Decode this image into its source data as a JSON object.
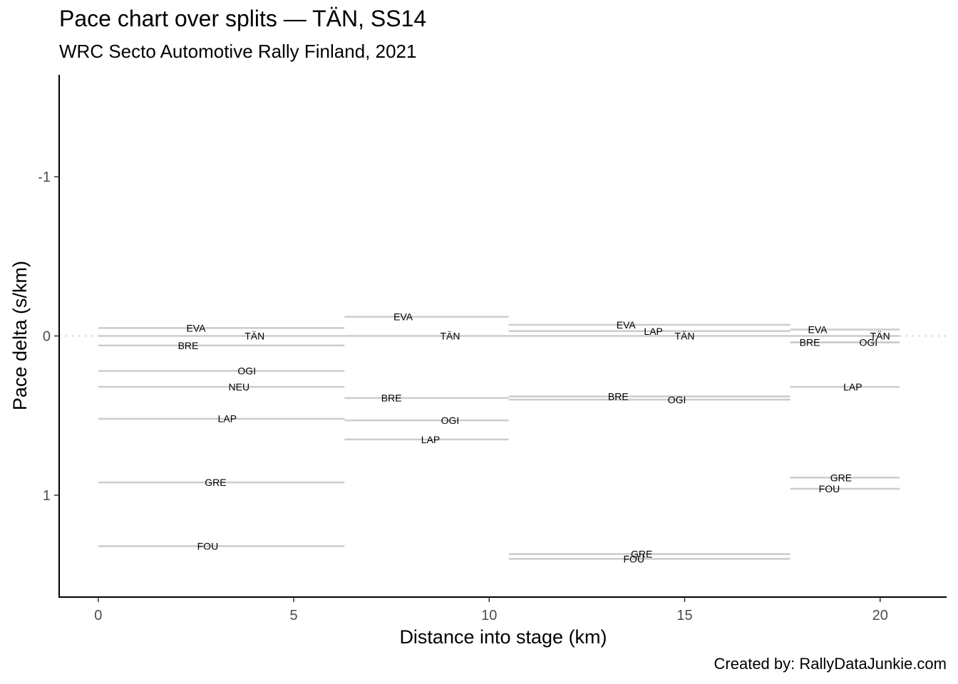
{
  "chart_data": {
    "type": "line",
    "title": "Pace chart over splits — TÄN, SS14",
    "subtitle": "WRC Secto Automotive Rally Finland, 2021",
    "caption": "Created by: RallyDataJunkie.com",
    "xlabel": "Distance into stage (km)",
    "ylabel": "Pace delta (s/km)",
    "xlim": [
      -1.0,
      21.7
    ],
    "ylim": [
      1.64,
      -1.64
    ],
    "y_reversed": true,
    "x_ticks": [
      0,
      5,
      10,
      15,
      20
    ],
    "x_tick_labels": [
      "0",
      "5",
      "10",
      "15",
      "20"
    ],
    "y_ticks": [
      -1,
      0,
      1
    ],
    "y_tick_labels": [
      "-1",
      "0",
      "1"
    ],
    "reference_line": {
      "y": 0,
      "style": "dotted"
    },
    "grid": false,
    "splits": [
      {
        "x_start": 0,
        "x_end": 6.3,
        "entries": [
          {
            "driver": "EVA",
            "pace": -0.05,
            "label_x": 2.5
          },
          {
            "driver": "TÄN",
            "pace": 0.0,
            "label_x": 4.0
          },
          {
            "driver": "BRE",
            "pace": 0.06,
            "label_x": 2.3
          },
          {
            "driver": "OGI",
            "pace": 0.22,
            "label_x": 3.8
          },
          {
            "driver": "NEU",
            "pace": 0.32,
            "label_x": 3.6
          },
          {
            "driver": "LAP",
            "pace": 0.52,
            "label_x": 3.3
          },
          {
            "driver": "GRE",
            "pace": 0.92,
            "label_x": 3.0
          },
          {
            "driver": "FOU",
            "pace": 1.32,
            "label_x": 2.8
          }
        ]
      },
      {
        "x_start": 6.3,
        "x_end": 10.5,
        "entries": [
          {
            "driver": "EVA",
            "pace": -0.12,
            "label_x": 7.8
          },
          {
            "driver": "TÄN",
            "pace": 0.0,
            "label_x": 9.0
          },
          {
            "driver": "BRE",
            "pace": 0.39,
            "label_x": 7.5
          },
          {
            "driver": "OGI",
            "pace": 0.53,
            "label_x": 9.0
          },
          {
            "driver": "LAP",
            "pace": 0.65,
            "label_x": 8.5
          }
        ]
      },
      {
        "x_start": 10.5,
        "x_end": 17.7,
        "entries": [
          {
            "driver": "EVA",
            "pace": -0.07,
            "label_x": 13.5
          },
          {
            "driver": "LAP",
            "pace": -0.03,
            "label_x": 14.2
          },
          {
            "driver": "TÄN",
            "pace": 0.0,
            "label_x": 15.0
          },
          {
            "driver": "BRE",
            "pace": 0.38,
            "label_x": 13.3
          },
          {
            "driver": "OGI",
            "pace": 0.4,
            "label_x": 14.8
          },
          {
            "driver": "GRE",
            "pace": 1.37,
            "label_x": 13.9
          },
          {
            "driver": "FOU",
            "pace": 1.4,
            "label_x": 13.7
          }
        ]
      },
      {
        "x_start": 17.7,
        "x_end": 20.5,
        "entries": [
          {
            "driver": "EVA",
            "pace": -0.04,
            "label_x": 18.4
          },
          {
            "driver": "TÄN",
            "pace": 0.0,
            "label_x": 20.0
          },
          {
            "driver": "BRE",
            "pace": 0.04,
            "label_x": 18.2
          },
          {
            "driver": "OGI",
            "pace": 0.04,
            "label_x": 19.7
          },
          {
            "driver": "LAP",
            "pace": 0.32,
            "label_x": 19.3
          },
          {
            "driver": "GRE",
            "pace": 0.89,
            "label_x": 19.0
          },
          {
            "driver": "FOU",
            "pace": 0.96,
            "label_x": 18.7
          }
        ]
      }
    ],
    "colors": {
      "segment": "#cccccc",
      "reference": "#cccccc",
      "axis": "#000000",
      "tick_text": "#4d4d4d"
    }
  }
}
